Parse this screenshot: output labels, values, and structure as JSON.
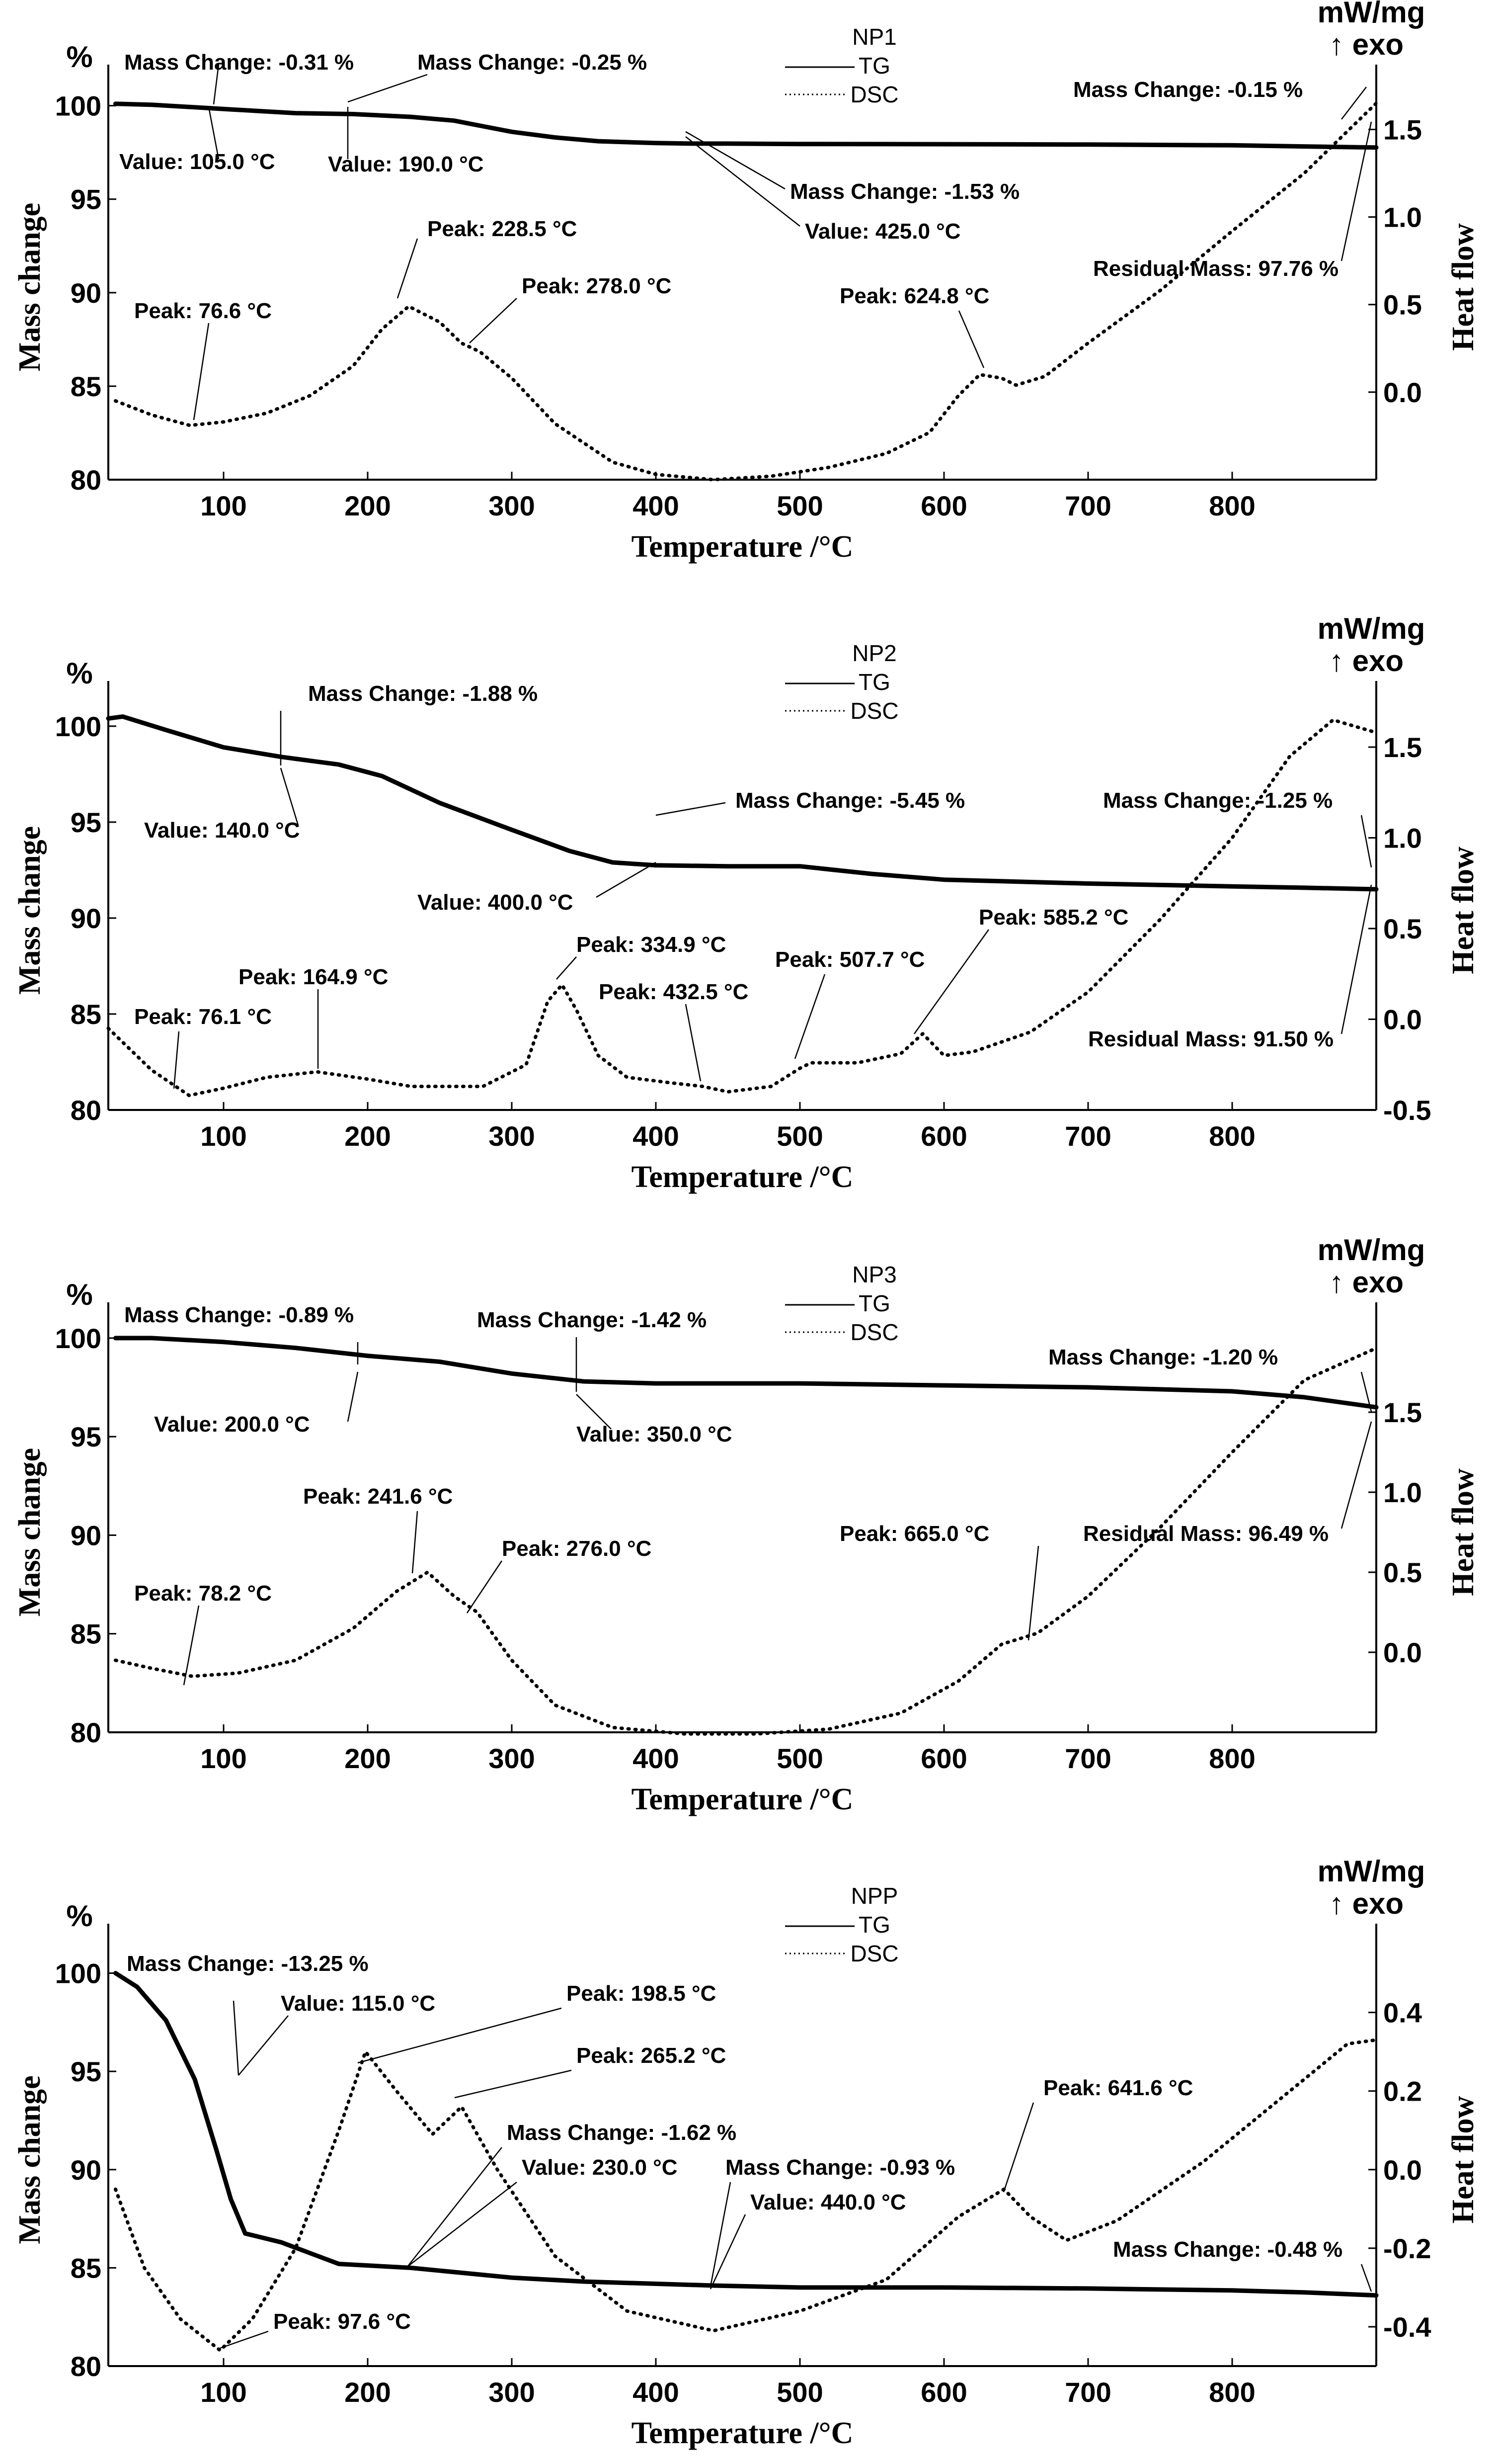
{
  "chart_data": [
    {
      "type": "line",
      "legend_title": "NP1",
      "series": [
        {
          "name": "TG",
          "axis": "left",
          "style": "solid",
          "x": [
            25,
            50,
            105,
            150,
            190,
            230,
            260,
            280,
            300,
            330,
            360,
            400,
            425,
            450,
            500,
            600,
            700,
            800,
            850,
            900
          ],
          "y": [
            100.1,
            100.05,
            99.8,
            99.6,
            99.55,
            99.4,
            99.2,
            98.9,
            98.6,
            98.3,
            98.1,
            98.0,
            97.97,
            97.97,
            97.95,
            97.94,
            97.92,
            97.88,
            97.82,
            97.76
          ]
        },
        {
          "name": "DSC",
          "axis": "right",
          "style": "dotted",
          "x": [
            25,
            50,
            76.6,
            100,
            130,
            160,
            190,
            210,
            228.5,
            250,
            265,
            278,
            300,
            330,
            370,
            400,
            440,
            480,
            520,
            560,
            590,
            610,
            624.8,
            640,
            650,
            670,
            700,
            750,
            800,
            850,
            900
          ],
          "y": [
            -0.05,
            -0.13,
            -0.19,
            -0.17,
            -0.12,
            -0.02,
            0.15,
            0.36,
            0.49,
            0.4,
            0.28,
            0.23,
            0.08,
            -0.18,
            -0.4,
            -0.47,
            -0.5,
            -0.48,
            -0.43,
            -0.35,
            -0.23,
            -0.02,
            0.1,
            0.08,
            0.04,
            0.09,
            0.28,
            0.58,
            0.92,
            1.25,
            1.65
          ]
        }
      ],
      "x_ticks": [
        100,
        200,
        300,
        400,
        500,
        600,
        700,
        800
      ],
      "y_left_ticks": [
        80,
        85,
        90,
        95,
        100
      ],
      "y_right_ticks": [
        "0.0",
        "0.5",
        "1.0",
        "1.5"
      ],
      "xlim": [
        20,
        900
      ],
      "ylim_left": [
        80,
        100.6
      ],
      "ylim_right": [
        -0.5,
        1.7
      ],
      "xlabel": "Temperature /°C",
      "ylabel_left": "Mass change",
      "ylabel_right": "Heat flow",
      "left_unit": "%",
      "right_unit_line1": "mW/mg",
      "right_unit_line2": "↑ exo",
      "annotations": [
        "Mass Change: -0.31 %",
        "Mass Change: -0.25 %",
        "Value: 105.0 °C",
        "Value: 190.0 °C",
        "Mass Change: -1.53 %",
        "Value: 425.0 °C",
        "Mass Change: -0.15 %",
        "Residual Mass: 97.76 %",
        "Peak: 76.6 °C",
        "Peak: 228.5 °C",
        "Peak: 278.0 °C",
        "Peak: 624.8 °C"
      ]
    },
    {
      "type": "line",
      "legend_title": "NP2",
      "series": [
        {
          "name": "TG",
          "axis": "left",
          "style": "solid",
          "x": [
            20,
            30,
            60,
            100,
            140,
            180,
            210,
            250,
            300,
            340,
            370,
            400,
            450,
            500,
            550,
            600,
            700,
            800,
            850,
            900
          ],
          "y": [
            100.4,
            100.5,
            99.8,
            98.9,
            98.4,
            98.0,
            97.4,
            96.0,
            94.6,
            93.5,
            92.9,
            92.75,
            92.7,
            92.7,
            92.3,
            92.0,
            91.8,
            91.65,
            91.58,
            91.5
          ]
        },
        {
          "name": "DSC",
          "axis": "right",
          "style": "dotted",
          "x": [
            20,
            50,
            76.1,
            100,
            130,
            164.9,
            200,
            230,
            280,
            310,
            325,
            334.9,
            345,
            360,
            380,
            410,
            432.5,
            450,
            480,
            500,
            507.7,
            540,
            570,
            585.2,
            600,
            620,
            660,
            700,
            750,
            800,
            840,
            870,
            900
          ],
          "y": [
            -0.05,
            -0.28,
            -0.42,
            -0.38,
            -0.32,
            -0.29,
            -0.33,
            -0.37,
            -0.37,
            -0.25,
            0.1,
            0.19,
            0.05,
            -0.2,
            -0.32,
            -0.35,
            -0.37,
            -0.4,
            -0.37,
            -0.27,
            -0.24,
            -0.24,
            -0.19,
            -0.08,
            -0.2,
            -0.18,
            -0.07,
            0.15,
            0.55,
            1.0,
            1.45,
            1.65,
            1.58
          ]
        }
      ],
      "x_ticks": [
        100,
        200,
        300,
        400,
        500,
        600,
        700,
        800
      ],
      "y_left_ticks": [
        80,
        85,
        90,
        95,
        100
      ],
      "y_right_ticks": [
        "-0.5",
        "0.0",
        "0.5",
        "1.0",
        "1.5"
      ],
      "xlim": [
        20,
        900
      ],
      "ylim_left": [
        80,
        100.8
      ],
      "ylim_right": [
        -0.5,
        1.7
      ],
      "xlabel": "Temperature /°C",
      "ylabel_left": "Mass change",
      "ylabel_right": "Heat flow",
      "left_unit": "%",
      "right_unit_line1": "mW/mg",
      "right_unit_line2": "↑ exo",
      "annotations": [
        "Mass Change: -1.88 %",
        "Value: 140.0 °C",
        "Mass Change: -5.45 %",
        "Value: 400.0 °C",
        "Mass Change: -1.25 %",
        "Residual Mass: 91.50 %",
        "Peak: 76.1 °C",
        "Peak: 164.9 °C",
        "Peak: 334.9 °C",
        "Peak: 432.5 °C",
        "Peak: 507.7 °C",
        "Peak: 585.2 °C"
      ]
    },
    {
      "type": "line",
      "legend_title": "NP3",
      "series": [
        {
          "name": "TG",
          "axis": "left",
          "style": "solid",
          "x": [
            25,
            50,
            100,
            150,
            200,
            250,
            300,
            350,
            400,
            500,
            600,
            700,
            800,
            850,
            900
          ],
          "y": [
            100.0,
            100.0,
            99.8,
            99.5,
            99.1,
            98.8,
            98.2,
            97.8,
            97.7,
            97.7,
            97.6,
            97.5,
            97.3,
            97.0,
            96.49
          ]
        },
        {
          "name": "DSC",
          "axis": "right",
          "style": "dotted",
          "x": [
            25,
            50,
            78.2,
            110,
            150,
            190,
            220,
            241.6,
            260,
            276,
            300,
            330,
            370,
            420,
            470,
            520,
            570,
            610,
            640,
            665,
            700,
            750,
            800,
            850,
            900
          ],
          "y": [
            -0.05,
            -0.1,
            -0.15,
            -0.13,
            -0.05,
            0.15,
            0.38,
            0.5,
            0.35,
            0.25,
            -0.05,
            -0.33,
            -0.47,
            -0.51,
            -0.51,
            -0.48,
            -0.38,
            -0.18,
            0.05,
            0.12,
            0.35,
            0.78,
            1.25,
            1.7,
            1.9
          ]
        }
      ],
      "x_ticks": [
        100,
        200,
        300,
        400,
        500,
        600,
        700,
        800
      ],
      "y_left_ticks": [
        80,
        85,
        90,
        95,
        100
      ],
      "y_right_ticks": [
        "0.0",
        "0.5",
        "1.0",
        "1.5"
      ],
      "xlim": [
        20,
        900
      ],
      "ylim_left": [
        80,
        100.3
      ],
      "ylim_right": [
        -0.5,
        2.0
      ],
      "xlabel": "Temperature /°C",
      "ylabel_left": "Mass change",
      "ylabel_right": "Heat flow",
      "left_unit": "%",
      "right_unit_line1": "mW/mg",
      "right_unit_line2": "↑ exo",
      "annotations": [
        "Mass Change: -0.89 %",
        "Value: 200.0 °C",
        "Mass Change: -1.42 %",
        "Value: 350.0 °C",
        "Mass Change: -1.20 %",
        "Residual Mass: 96.49 %",
        "Peak: 78.2 °C",
        "Peak: 241.6 °C",
        "Peak: 276.0 °C",
        "Peak: 665.0 °C"
      ]
    },
    {
      "type": "line",
      "legend_title": "NPP",
      "series": [
        {
          "name": "TG",
          "axis": "left",
          "style": "solid",
          "x": [
            25,
            40,
            60,
            80,
            95,
            105,
            115,
            140,
            180,
            230,
            300,
            350,
            440,
            500,
            600,
            700,
            800,
            850,
            900
          ],
          "y": [
            100.0,
            99.3,
            97.6,
            94.6,
            91.0,
            88.5,
            86.75,
            86.3,
            85.2,
            85.0,
            84.5,
            84.3,
            84.1,
            84.0,
            84.0,
            83.95,
            83.85,
            83.75,
            83.6
          ]
        },
        {
          "name": "DSC",
          "axis": "right",
          "style": "dotted",
          "x": [
            25,
            45,
            70,
            97.6,
            120,
            150,
            180,
            198.5,
            220,
            245,
            265.2,
            290,
            330,
            380,
            440,
            500,
            560,
            610,
            641.6,
            660,
            685,
            720,
            780,
            840,
            880,
            900
          ],
          "y": [
            -0.05,
            -0.25,
            -0.38,
            -0.46,
            -0.38,
            -0.2,
            0.1,
            0.3,
            0.2,
            0.09,
            0.16,
            0.0,
            -0.22,
            -0.36,
            -0.41,
            -0.36,
            -0.28,
            -0.12,
            -0.05,
            -0.12,
            -0.18,
            -0.13,
            0.02,
            0.2,
            0.32,
            0.33
          ]
        }
      ],
      "x_ticks": [
        100,
        200,
        300,
        400,
        500,
        600,
        700,
        800
      ],
      "y_left_ticks": [
        80,
        85,
        90,
        95,
        100
      ],
      "y_right_ticks": [
        "-0.4",
        "-0.2",
        "0.0",
        "0.2",
        "0.4"
      ],
      "xlim": [
        20,
        900
      ],
      "ylim_left": [
        80,
        101.0
      ],
      "ylim_right": [
        -0.5,
        0.55
      ],
      "xlabel": "Temperature /°C",
      "ylabel_left": "Mass change",
      "ylabel_right": "Heat flow",
      "left_unit": "%",
      "right_unit_line1": "mW/mg",
      "right_unit_line2": "↑ exo",
      "annotations": [
        "Mass Change: -13.25 %",
        "Value: 115.0 °C",
        "Peak: 198.5 °C",
        "Peak: 265.2 °C",
        "Mass Change: -1.62 %",
        "Value: 230.0 °C",
        "Mass Change: -0.93 %",
        "Value: 440.0 °C",
        "Peak: 641.6 °C",
        "Mass Change: -0.48 %",
        "Peak: 97.6 °C"
      ]
    }
  ]
}
